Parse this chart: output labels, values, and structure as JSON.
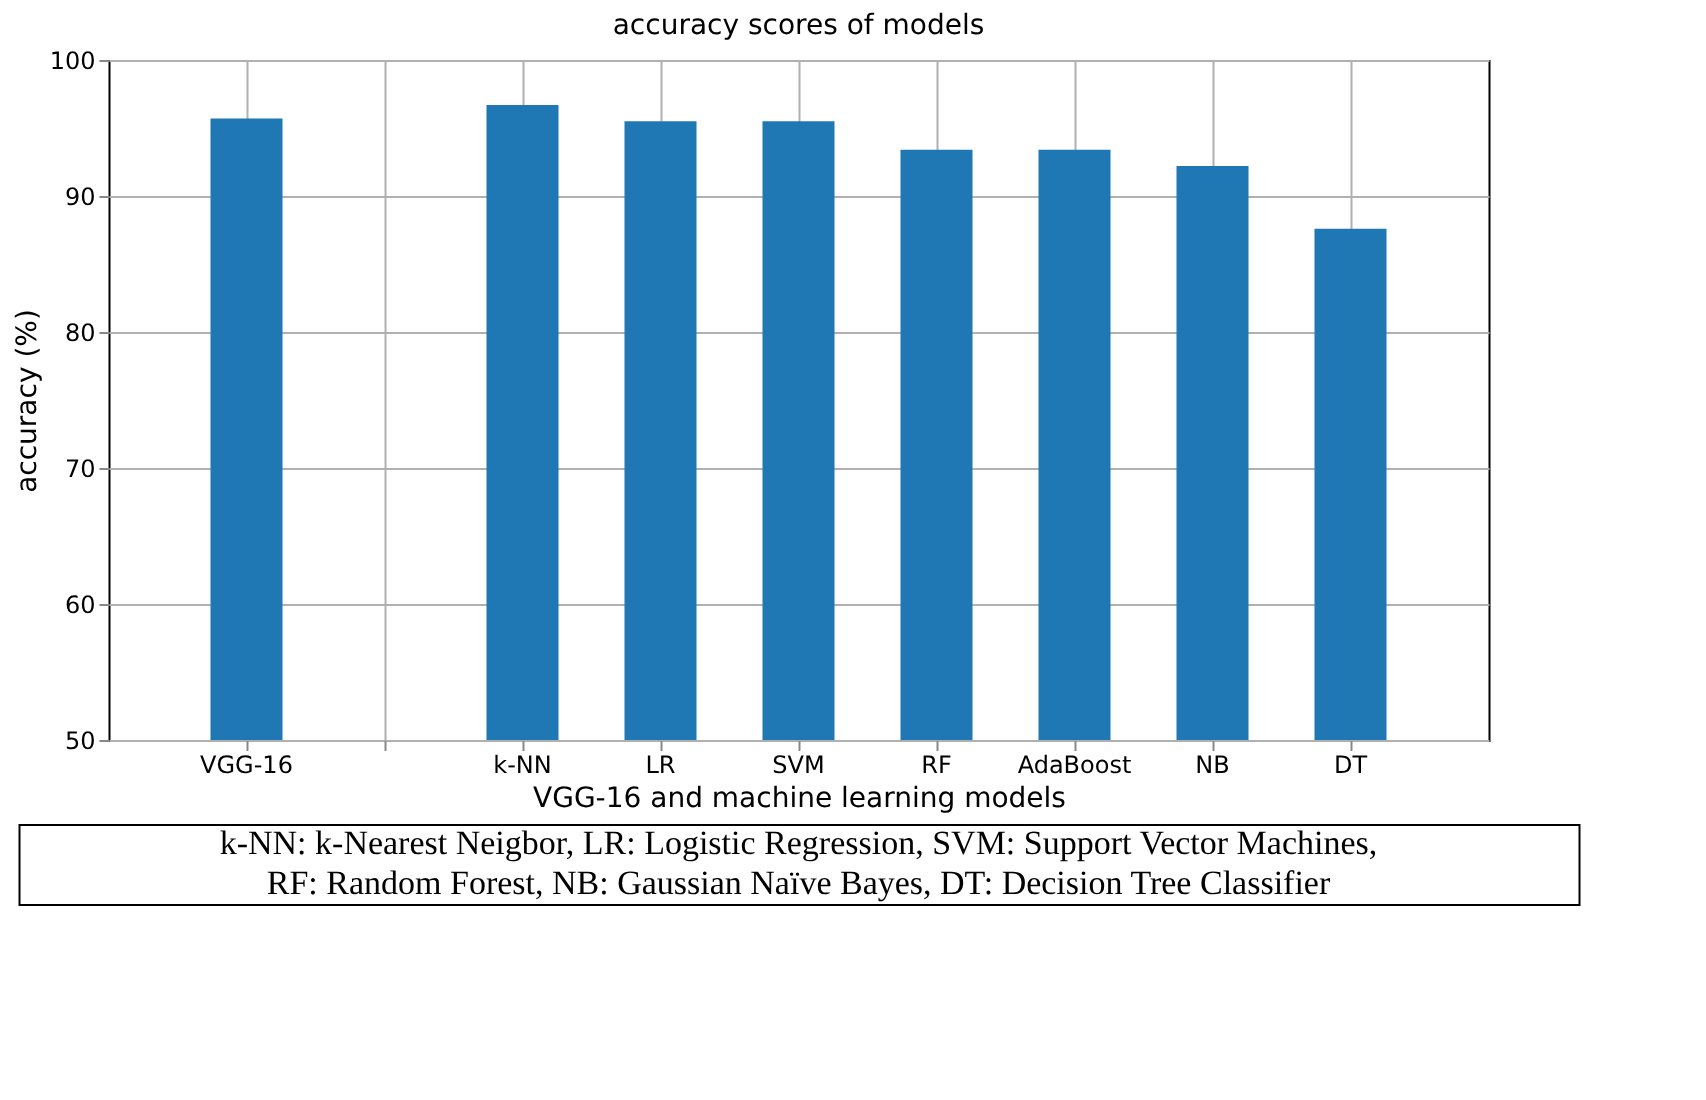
{
  "chart_data": {
    "type": "bar",
    "title": "accuracy scores of models",
    "xlabel": "VGG-16 and machine learning models",
    "ylabel": "accuracy (%)",
    "categories": [
      "VGG-16",
      null,
      "k-NN",
      "LR",
      "SVM",
      "RF",
      "AdaBoost",
      "NB",
      "DT"
    ],
    "values": [
      95.7,
      null,
      96.7,
      95.5,
      95.5,
      93.4,
      93.4,
      92.2,
      87.6
    ],
    "color": "#1f77b4",
    "ylim": [
      50,
      100
    ],
    "yticks": [
      50,
      60,
      70,
      80,
      90,
      100
    ],
    "grid": true,
    "annotations": [
      "k-NN: k-Nearest Neigbor, LR: Logistic Regression, SVM: Support Vector Machines,",
      "RF: Random Forest, NB: Gaussian Naïve Bayes, DT: Decision Tree Classifier"
    ]
  }
}
